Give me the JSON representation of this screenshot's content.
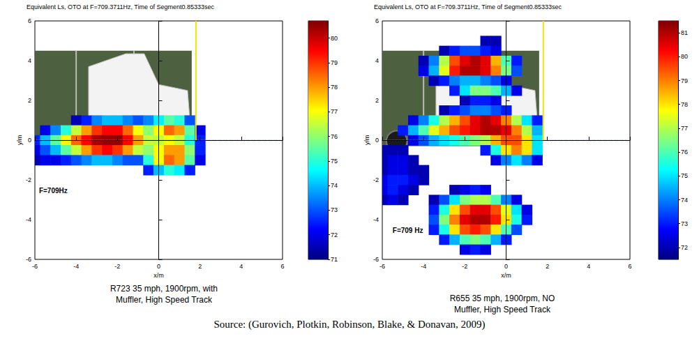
{
  "chart_data": [
    {
      "type": "heatmap",
      "title": "Equivalent Ls, OTO at F=709.3711Hz, Time of Segment0.85333sec",
      "x_label": "x/m",
      "y_label": "y/m",
      "xlim": [
        -6,
        6
      ],
      "ylim": [
        -6,
        6
      ],
      "xticks": [
        -6,
        -4,
        -2,
        0,
        2,
        4,
        6
      ],
      "yticks": [
        -6,
        -4,
        -2,
        0,
        2,
        4,
        6
      ],
      "grid": false,
      "annotation": "F=709Hz",
      "caption": [
        "R723 35 mph, 1900rpm, with",
        "Muffler, High Speed Track"
      ],
      "reference_lines": {
        "x": 0,
        "y": 0
      },
      "marker_x": 1.8,
      "colorbar": {
        "range": [
          71,
          80.7
        ],
        "ticks": [
          71,
          72,
          73,
          74,
          75,
          76,
          77,
          78,
          79,
          80
        ]
      },
      "cell_size": 0.5,
      "cells": [
        [
          -4,
          1,
          71.5
        ],
        [
          -3.5,
          1,
          72.5
        ],
        [
          -3,
          1,
          73.5
        ],
        [
          -2.5,
          1,
          74
        ],
        [
          -2,
          1,
          74
        ],
        [
          -1.5,
          1,
          73.5
        ],
        [
          -1,
          1,
          73
        ],
        [
          -0.5,
          1,
          73.5
        ],
        [
          0,
          1,
          74.5
        ],
        [
          0.5,
          1,
          75.5
        ],
        [
          1,
          1,
          75
        ],
        [
          1.5,
          1,
          73
        ],
        [
          -5.5,
          0.5,
          72
        ],
        [
          -5,
          0.5,
          73.5
        ],
        [
          -4.5,
          0.5,
          75
        ],
        [
          -4,
          0.5,
          76.5
        ],
        [
          -3.5,
          0.5,
          78
        ],
        [
          -3,
          0.5,
          79
        ],
        [
          -2.5,
          0.5,
          79.5
        ],
        [
          -2,
          0.5,
          79.5
        ],
        [
          -1.5,
          0.5,
          78.5
        ],
        [
          -1,
          0.5,
          77
        ],
        [
          -0.5,
          0.5,
          76
        ],
        [
          0,
          0.5,
          77
        ],
        [
          0.5,
          0.5,
          78.5
        ],
        [
          1,
          0.5,
          78
        ],
        [
          1.5,
          0.5,
          75.5
        ],
        [
          2,
          0.5,
          72
        ],
        [
          -6,
          0,
          72.5
        ],
        [
          -5.5,
          0,
          74
        ],
        [
          -5,
          0,
          75.5
        ],
        [
          -4.5,
          0,
          77
        ],
        [
          -4,
          0,
          78.5
        ],
        [
          -3.5,
          0,
          79.5
        ],
        [
          -3,
          0,
          80.3
        ],
        [
          -2.5,
          0,
          80.5
        ],
        [
          -2,
          0,
          80.5
        ],
        [
          -1.5,
          0,
          79.5
        ],
        [
          -1,
          0,
          78
        ],
        [
          -0.5,
          0,
          76.5
        ],
        [
          0,
          0,
          76.5
        ],
        [
          0.5,
          0,
          77
        ],
        [
          1,
          0,
          76.5
        ],
        [
          1.5,
          0,
          75
        ],
        [
          2,
          0,
          72.5
        ],
        [
          -6,
          -0.5,
          72
        ],
        [
          -5.5,
          -0.5,
          73
        ],
        [
          -5,
          -0.5,
          74
        ],
        [
          -4.5,
          -0.5,
          75.5
        ],
        [
          -4,
          -0.5,
          76.5
        ],
        [
          -3.5,
          -0.5,
          78
        ],
        [
          -3,
          -0.5,
          79
        ],
        [
          -2.5,
          -0.5,
          79.5
        ],
        [
          -2,
          -0.5,
          79
        ],
        [
          -1.5,
          -0.5,
          78
        ],
        [
          -1,
          -0.5,
          76.5
        ],
        [
          -0.5,
          -0.5,
          76
        ],
        [
          0,
          -0.5,
          77
        ],
        [
          0.5,
          -0.5,
          78
        ],
        [
          1,
          -0.5,
          78
        ],
        [
          1.5,
          -0.5,
          76
        ],
        [
          2,
          -0.5,
          72.5
        ],
        [
          -6,
          -1,
          71.5
        ],
        [
          -5.5,
          -1,
          72
        ],
        [
          -5,
          -1,
          72
        ],
        [
          -4.5,
          -1,
          72.5
        ],
        [
          -4,
          -1,
          73
        ],
        [
          -3.5,
          -1,
          73.5
        ],
        [
          -3,
          -1,
          74
        ],
        [
          -2.5,
          -1,
          74
        ],
        [
          -2,
          -1,
          73.5
        ],
        [
          -1.5,
          -1,
          73
        ],
        [
          -1,
          -1,
          73
        ],
        [
          -0.5,
          -1,
          75
        ],
        [
          0,
          -1,
          77
        ],
        [
          0.5,
          -1,
          78.5
        ],
        [
          1,
          -1,
          78
        ],
        [
          1.5,
          -1,
          75.5
        ],
        [
          2,
          -1,
          72
        ],
        [
          -0.5,
          -1.5,
          72.5
        ],
        [
          0,
          -1.5,
          74
        ],
        [
          0.5,
          -1.5,
          75
        ],
        [
          1,
          -1.5,
          74.5
        ],
        [
          1.5,
          -1.5,
          72.5
        ]
      ]
    },
    {
      "type": "heatmap",
      "title": "Equivalent Ls, OTO at F=709.3711Hz, Time of Segment0.85333sec",
      "x_label": "x/m",
      "y_label": "y/m",
      "xlim": [
        -6,
        6
      ],
      "ylim": [
        -6,
        6
      ],
      "xticks": [
        -6,
        -4,
        -2,
        0,
        2,
        4,
        6
      ],
      "yticks": [
        -6,
        -4,
        -2,
        0,
        2,
        4,
        6
      ],
      "grid": false,
      "annotation": "F=709 Hz",
      "caption": [
        "R655 35 mph, 1900rpm, NO",
        "Muffler, High Speed Track"
      ],
      "reference_lines": {
        "x": 0,
        "y": 0
      },
      "marker_x": 1.8,
      "colorbar": {
        "range": [
          71.5,
          81.5
        ],
        "ticks": [
          72,
          73,
          74,
          75,
          76,
          77,
          78,
          79,
          80,
          81
        ]
      },
      "cell_size": 0.5,
      "cells": [
        [
          -1,
          5,
          72
        ],
        [
          -0.5,
          5,
          72
        ],
        [
          -3,
          4.5,
          72
        ],
        [
          -2.5,
          4.5,
          73
        ],
        [
          -2,
          4.5,
          73.5
        ],
        [
          -1.5,
          4.5,
          73.5
        ],
        [
          -1,
          4.5,
          73
        ],
        [
          -0.5,
          4.5,
          72.5
        ],
        [
          -4,
          4,
          72
        ],
        [
          -3.5,
          4,
          74
        ],
        [
          -3,
          4,
          77
        ],
        [
          -2.5,
          4,
          79.5
        ],
        [
          -2,
          4,
          80.5
        ],
        [
          -1.5,
          4,
          81
        ],
        [
          -1,
          4,
          80.5
        ],
        [
          -0.5,
          4,
          78.5
        ],
        [
          0,
          4,
          76
        ],
        [
          0.5,
          4,
          73
        ],
        [
          -4,
          3.5,
          72.5
        ],
        [
          -3.5,
          3.5,
          74.5
        ],
        [
          -3,
          3.5,
          77.5
        ],
        [
          -2.5,
          3.5,
          80
        ],
        [
          -2,
          3.5,
          81
        ],
        [
          -1.5,
          3.5,
          81
        ],
        [
          -1,
          3.5,
          80.5
        ],
        [
          -0.5,
          3.5,
          79
        ],
        [
          0,
          3.5,
          76.5
        ],
        [
          0.5,
          3.5,
          73.5
        ],
        [
          -3.5,
          3,
          72
        ],
        [
          -3,
          3,
          73
        ],
        [
          -2.5,
          3,
          74
        ],
        [
          -2,
          3,
          74.5
        ],
        [
          -1.5,
          3,
          74.5
        ],
        [
          -1,
          3,
          74
        ],
        [
          -0.5,
          3,
          73.5
        ],
        [
          0,
          3,
          72.5
        ],
        [
          -2.5,
          2.5,
          73
        ],
        [
          -2,
          2.5,
          75
        ],
        [
          -1.5,
          2.5,
          76.5
        ],
        [
          -1,
          2.5,
          76.5
        ],
        [
          -0.5,
          2.5,
          76
        ],
        [
          0,
          2.5,
          74.5
        ],
        [
          0.5,
          2.5,
          72.5
        ],
        [
          -2,
          2,
          72
        ],
        [
          -1.5,
          2,
          73
        ],
        [
          -1,
          2,
          73
        ],
        [
          -0.5,
          2,
          72.5
        ],
        [
          -3,
          1.5,
          72
        ],
        [
          -2.5,
          1.5,
          73
        ],
        [
          -2,
          1.5,
          73.5
        ],
        [
          -1.5,
          1.5,
          74
        ],
        [
          -1,
          1.5,
          74
        ],
        [
          -0.5,
          1.5,
          73.5
        ],
        [
          0,
          1.5,
          73
        ],
        [
          -4.5,
          1,
          72.5
        ],
        [
          -4,
          1,
          74
        ],
        [
          -3.5,
          1,
          75.5
        ],
        [
          -3,
          1,
          77
        ],
        [
          -2.5,
          1,
          78.5
        ],
        [
          -2,
          1,
          79.5
        ],
        [
          -1.5,
          1,
          80.5
        ],
        [
          -1,
          1,
          81
        ],
        [
          -0.5,
          1,
          80.5
        ],
        [
          0,
          1,
          79
        ],
        [
          0.5,
          1,
          77
        ],
        [
          1,
          1,
          75
        ],
        [
          1.5,
          1,
          73
        ],
        [
          -5,
          0.5,
          73
        ],
        [
          -4.5,
          0.5,
          74.5
        ],
        [
          -4,
          0.5,
          76
        ],
        [
          -3.5,
          0.5,
          77.5
        ],
        [
          -3,
          0.5,
          78.5
        ],
        [
          -2.5,
          0.5,
          79.5
        ],
        [
          -2,
          0.5,
          80
        ],
        [
          -1.5,
          0.5,
          80.5
        ],
        [
          -1,
          0.5,
          81
        ],
        [
          -0.5,
          0.5,
          81
        ],
        [
          0,
          0.5,
          80.5
        ],
        [
          0.5,
          0.5,
          79
        ],
        [
          1,
          0.5,
          77
        ],
        [
          1.5,
          0.5,
          74.5
        ],
        [
          -4.5,
          0,
          72.5
        ],
        [
          -4,
          0,
          73.5
        ],
        [
          -3.5,
          0,
          74.5
        ],
        [
          -3,
          0,
          75
        ],
        [
          -2.5,
          0,
          75.5
        ],
        [
          -2,
          0,
          76
        ],
        [
          -1.5,
          0,
          76.5
        ],
        [
          -1,
          0,
          77
        ],
        [
          -0.5,
          0,
          78.5
        ],
        [
          0,
          0,
          79.5
        ],
        [
          0.5,
          0,
          79.5
        ],
        [
          1,
          0,
          78
        ],
        [
          1.5,
          0,
          75
        ],
        [
          -6,
          -0.5,
          72
        ],
        [
          -5.5,
          -0.5,
          72
        ],
        [
          -5,
          -0.5,
          72
        ],
        [
          -1,
          -0.5,
          73
        ],
        [
          -0.5,
          -0.5,
          75.5
        ],
        [
          0,
          -0.5,
          78
        ],
        [
          0.5,
          -0.5,
          79
        ],
        [
          1,
          -0.5,
          78
        ],
        [
          1.5,
          -0.5,
          75
        ],
        [
          -6,
          -1,
          72
        ],
        [
          -5.5,
          -1,
          72.5
        ],
        [
          -5,
          -1,
          72.5
        ],
        [
          -4.5,
          -1,
          72
        ],
        [
          -0.5,
          -1,
          72.5
        ],
        [
          0,
          -1,
          74
        ],
        [
          0.5,
          -1,
          75
        ],
        [
          1,
          -1,
          74
        ],
        [
          1.5,
          -1,
          72.5
        ],
        [
          -6,
          -1.5,
          72
        ],
        [
          -5.5,
          -1.5,
          72.5
        ],
        [
          -5,
          -1.5,
          72.5
        ],
        [
          -4.5,
          -1.5,
          72
        ],
        [
          -4,
          -1.5,
          72
        ],
        [
          -6,
          -2,
          72.5
        ],
        [
          -5.5,
          -2,
          73
        ],
        [
          -5,
          -2,
          73
        ],
        [
          -4.5,
          -2,
          72.5
        ],
        [
          -4,
          -2,
          72
        ],
        [
          -6,
          -2.5,
          72.5
        ],
        [
          -5.5,
          -2.5,
          73
        ],
        [
          -5,
          -2.5,
          72.5
        ],
        [
          -4.5,
          -2.5,
          72
        ],
        [
          -2.5,
          -2.5,
          72
        ],
        [
          -2,
          -2.5,
          72.5
        ],
        [
          -1.5,
          -2.5,
          73
        ],
        [
          -1,
          -2.5,
          72.5
        ],
        [
          -6,
          -3,
          72
        ],
        [
          -5.5,
          -3,
          72.5
        ],
        [
          -5,
          -3,
          72
        ],
        [
          -3.5,
          -3,
          72
        ],
        [
          -3,
          -3,
          73.5
        ],
        [
          -2.5,
          -3,
          75
        ],
        [
          -2,
          -3,
          76.5
        ],
        [
          -1.5,
          -3,
          77
        ],
        [
          -1,
          -3,
          77
        ],
        [
          -0.5,
          -3,
          76
        ],
        [
          0,
          -3,
          74
        ],
        [
          0.5,
          -3,
          72.5
        ],
        [
          -3.5,
          -3.5,
          73
        ],
        [
          -3,
          -3.5,
          75.5
        ],
        [
          -2.5,
          -3.5,
          78
        ],
        [
          -2,
          -3.5,
          79.5
        ],
        [
          -1.5,
          -3.5,
          80.5
        ],
        [
          -1,
          -3.5,
          80.5
        ],
        [
          -0.5,
          -3.5,
          79.5
        ],
        [
          0,
          -3.5,
          77.5
        ],
        [
          0.5,
          -3.5,
          75
        ],
        [
          1,
          -3.5,
          72.5
        ],
        [
          -3.5,
          -4,
          73.5
        ],
        [
          -3,
          -4,
          76.5
        ],
        [
          -2.5,
          -4,
          79
        ],
        [
          -2,
          -4,
          80.5
        ],
        [
          -1.5,
          -4,
          81
        ],
        [
          -1,
          -4,
          81
        ],
        [
          -0.5,
          -4,
          80
        ],
        [
          0,
          -4,
          78
        ],
        [
          0.5,
          -4,
          75.5
        ],
        [
          1,
          -4,
          73
        ],
        [
          -3.5,
          -4.5,
          73
        ],
        [
          -3,
          -4.5,
          75.5
        ],
        [
          -2.5,
          -4.5,
          78
        ],
        [
          -2,
          -4.5,
          79.5
        ],
        [
          -1.5,
          -4.5,
          80
        ],
        [
          -1,
          -4.5,
          79.5
        ],
        [
          -0.5,
          -4.5,
          78
        ],
        [
          0,
          -4.5,
          76
        ],
        [
          0.5,
          -4.5,
          73.5
        ],
        [
          -3,
          -5,
          73
        ],
        [
          -2.5,
          -5,
          74.5
        ],
        [
          -2,
          -5,
          76
        ],
        [
          -1.5,
          -5,
          76.5
        ],
        [
          -1,
          -5,
          76
        ],
        [
          -0.5,
          -5,
          74.5
        ],
        [
          0,
          -5,
          73
        ],
        [
          -2,
          -5.5,
          72.5
        ],
        [
          -1.5,
          -5.5,
          73
        ],
        [
          -1,
          -5.5,
          72.5
        ]
      ]
    }
  ],
  "source": "Source: (Gurovich, Plotkin, Robinson, Blake, & Donavan, 2009)"
}
